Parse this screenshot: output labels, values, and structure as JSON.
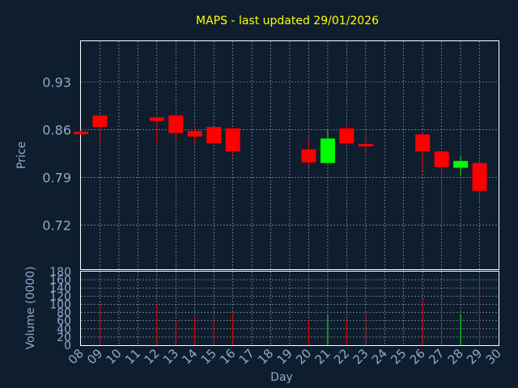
{
  "chart_data": {
    "type": "candlestick",
    "title": "MAPS - last updated 29/01/2026",
    "xlabel": "Day",
    "price_panel": {
      "ylabel": "Price",
      "ylim": [
        0.655,
        0.99
      ],
      "yticks": [
        0.72,
        0.79,
        0.86,
        0.93
      ],
      "ytick_labels": [
        "0.72",
        "0.79",
        "0.86",
        "0.93"
      ]
    },
    "volume_panel": {
      "ylabel": "Volume (0000)",
      "ylim": [
        0,
        180
      ],
      "yticks": [
        0,
        20,
        40,
        60,
        80,
        100,
        120,
        140,
        160,
        180
      ],
      "ytick_labels": [
        "0",
        "20",
        "40",
        "60",
        "80",
        "100",
        "120",
        "140",
        "160",
        "180"
      ]
    },
    "x_ticks": [
      "08",
      "09",
      "10",
      "11",
      "12",
      "13",
      "14",
      "15",
      "16",
      "17",
      "18",
      "19",
      "20",
      "21",
      "22",
      "23",
      "24",
      "25",
      "26",
      "27",
      "28",
      "29",
      "30"
    ],
    "colors": {
      "up": "#00ff00",
      "down": "#ff0000",
      "background": "#0f1e2e",
      "grid": "#cfd8e3",
      "title": "#ffff00",
      "label": "#8fa9cc"
    },
    "candles": [
      {
        "day": "08",
        "open": 0.857,
        "high": 0.86,
        "low": 0.852,
        "close": 0.854,
        "volume": 0
      },
      {
        "day": "09",
        "open": 0.881,
        "high": 0.881,
        "low": 0.837,
        "close": 0.864,
        "volume": 100
      },
      {
        "day": "12",
        "open": 0.878,
        "high": 0.879,
        "low": 0.84,
        "close": 0.873,
        "volume": 100
      },
      {
        "day": "13",
        "open": 0.881,
        "high": 0.881,
        "low": 0.845,
        "close": 0.855,
        "volume": 60
      },
      {
        "day": "14",
        "open": 0.858,
        "high": 0.866,
        "low": 0.838,
        "close": 0.85,
        "volume": 70
      },
      {
        "day": "15",
        "open": 0.864,
        "high": 0.864,
        "low": 0.838,
        "close": 0.84,
        "volume": 70
      },
      {
        "day": "16",
        "open": 0.862,
        "high": 0.862,
        "low": 0.823,
        "close": 0.828,
        "volume": 80
      },
      {
        "day": "20",
        "open": 0.831,
        "high": 0.845,
        "low": 0.805,
        "close": 0.812,
        "volume": 60
      },
      {
        "day": "21",
        "open": 0.811,
        "high": 0.86,
        "low": 0.811,
        "close": 0.847,
        "volume": 75
      },
      {
        "day": "22",
        "open": 0.862,
        "high": 0.868,
        "low": 0.835,
        "close": 0.84,
        "volume": 65
      },
      {
        "day": "23",
        "open": 0.839,
        "high": 0.852,
        "low": 0.822,
        "close": 0.836,
        "volume": 80
      },
      {
        "day": "26",
        "open": 0.853,
        "high": 0.856,
        "low": 0.8,
        "close": 0.828,
        "volume": 112
      },
      {
        "day": "27",
        "open": 0.828,
        "high": 0.828,
        "low": 0.721,
        "close": 0.805,
        "volume": 112
      },
      {
        "day": "28",
        "open": 0.804,
        "high": 0.821,
        "low": 0.792,
        "close": 0.814,
        "volume": 75
      },
      {
        "day": "29",
        "open": 0.811,
        "high": 0.817,
        "low": 0.75,
        "close": 0.77,
        "volume": 170
      }
    ]
  }
}
